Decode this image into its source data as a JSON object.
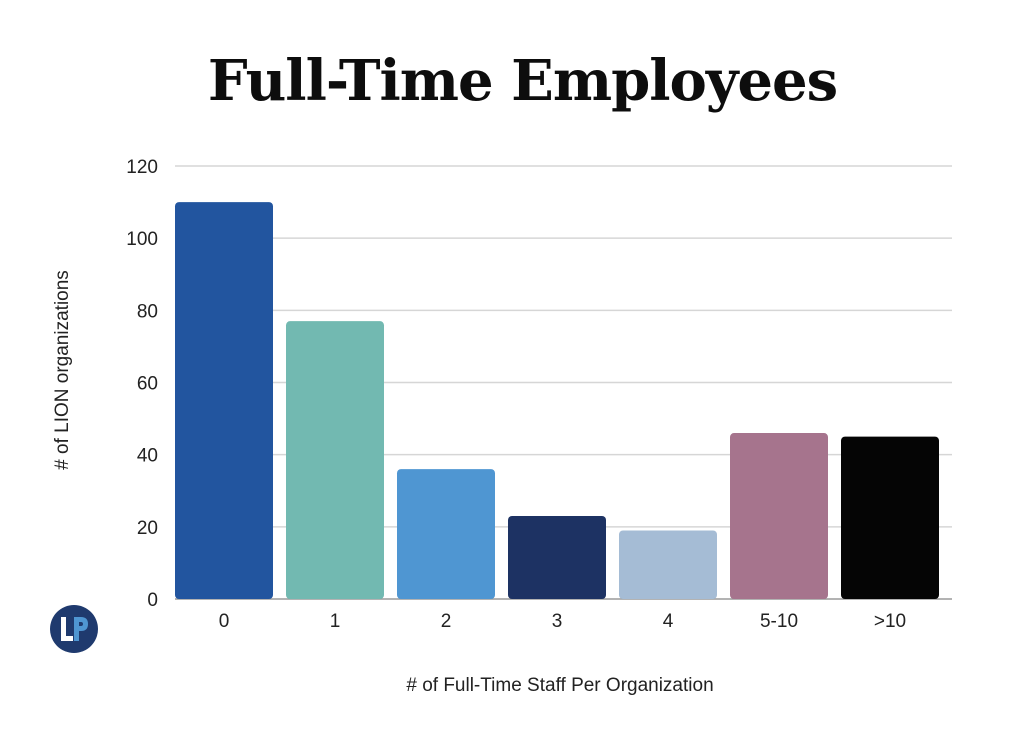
{
  "chart_data": {
    "type": "bar",
    "title": "Full-Time Employees",
    "xlabel": "# of Full-Time Staff Per Organization",
    "ylabel": "# of LION organizations",
    "categories": [
      "0",
      "1",
      "2",
      "3",
      "4",
      "5-10",
      ">10"
    ],
    "values": [
      110,
      77,
      36,
      23,
      19,
      46,
      45
    ],
    "colors": [
      "#22559f",
      "#72b9b1",
      "#4f96d2",
      "#1d3263",
      "#a5bcd5",
      "#a6748d",
      "#050505"
    ],
    "ylim": [
      0,
      120
    ],
    "yticks": [
      0,
      20,
      40,
      60,
      80,
      100,
      120
    ],
    "grid": true,
    "legend": "none"
  },
  "logo": {
    "name": "lion-publishers-logo",
    "color": "#1f3a6e",
    "accent": "#4f96d2"
  }
}
